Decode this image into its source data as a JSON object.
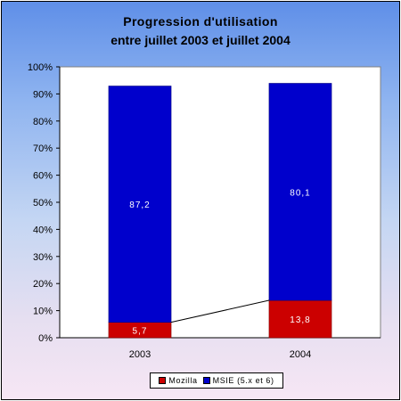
{
  "chart_data": {
    "type": "bar",
    "stacked": true,
    "percent": true,
    "title": "Progression d'utilisation",
    "subtitle": "entre juillet 2003 et juillet  2004",
    "categories": [
      "2003",
      "2004"
    ],
    "series": [
      {
        "name": "Mozilla",
        "values": [
          5.7,
          13.8
        ],
        "labels": [
          "5,7",
          "13,8"
        ],
        "color": "#cc0000"
      },
      {
        "name": "MSIE (5.x et 6)",
        "values": [
          87.2,
          80.1
        ],
        "labels": [
          "87,2",
          "80,1"
        ],
        "color": "#0000cc"
      }
    ],
    "yticks": [
      "0%",
      "10%",
      "20%",
      "30%",
      "40%",
      "50%",
      "60%",
      "70%",
      "80%",
      "90%",
      "100%"
    ],
    "ylim": [
      0,
      100
    ],
    "series_lines": true,
    "grid": false,
    "legend": "bottom",
    "colors": {
      "plot_background": "#ffffff"
    }
  }
}
